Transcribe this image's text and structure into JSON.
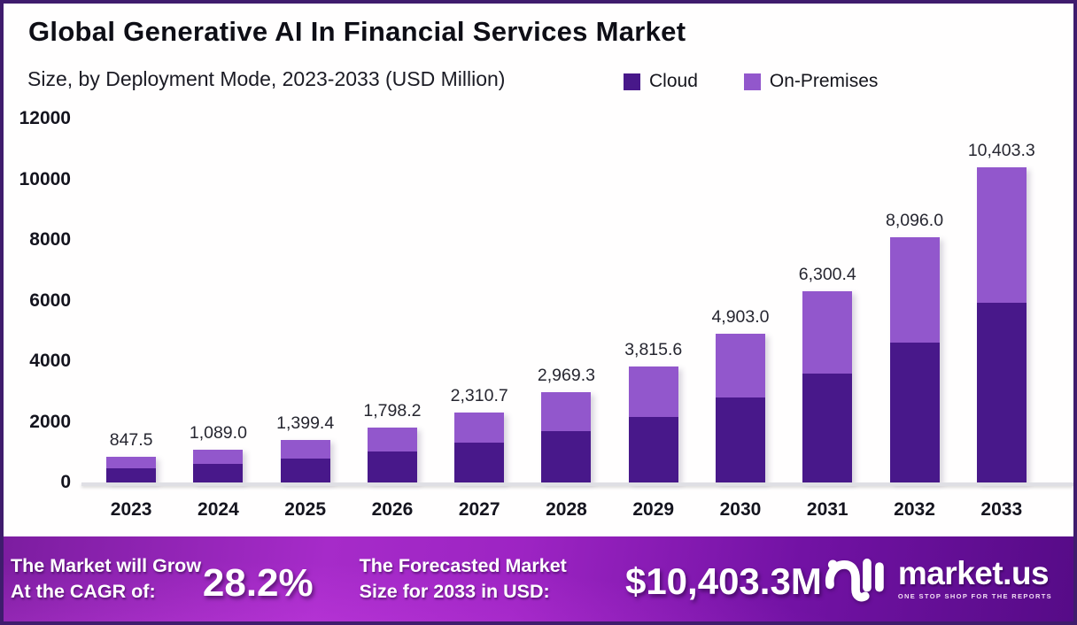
{
  "header": {
    "title": "Global Generative AI In Financial Services Market",
    "subtitle": "Size, by Deployment Mode, 2023-2033 (USD Million)"
  },
  "legend": [
    {
      "label": "Cloud",
      "color": "#48188a"
    },
    {
      "label": "On-Premises",
      "color": "#9257cc"
    }
  ],
  "chart_data": {
    "type": "bar",
    "stacked": true,
    "title": "Global Generative AI In Financial Services Market Size, by Deployment Mode, 2023-2033 (USD Million)",
    "categories": [
      "2023",
      "2024",
      "2025",
      "2026",
      "2027",
      "2028",
      "2029",
      "2030",
      "2031",
      "2032",
      "2033"
    ],
    "series": [
      {
        "name": "Cloud",
        "color": "#48188a",
        "values": [
          483.1,
          620.7,
          797.7,
          1025.0,
          1317.1,
          1692.5,
          2174.9,
          2794.7,
          3591.2,
          4614.7,
          5929.9
        ]
      },
      {
        "name": "On-Premises",
        "color": "#9257cc",
        "values": [
          364.4,
          468.3,
          601.7,
          773.2,
          993.6,
          1276.8,
          1640.7,
          2108.3,
          2709.2,
          3481.3,
          4473.4
        ]
      }
    ],
    "totals": [
      847.5,
      1089.0,
      1399.4,
      1798.2,
      2310.7,
      2969.3,
      3815.6,
      4903.0,
      6300.4,
      8096.0,
      10403.3
    ],
    "total_labels": [
      "847.5",
      "1,089.0",
      "1,399.4",
      "1,798.2",
      "2,310.7",
      "2,969.3",
      "3,815.6",
      "4,903.0",
      "6,300.4",
      "8,096.0",
      "10,403.3"
    ],
    "xlabel": "",
    "ylabel": "",
    "ylim": [
      0,
      12000
    ],
    "yticks": [
      0,
      2000,
      4000,
      6000,
      8000,
      10000,
      12000
    ],
    "grid": false,
    "legend_position": "top"
  },
  "footer": {
    "cagr_label_line1": "The Market will Grow",
    "cagr_label_line2": "At the CAGR of:",
    "cagr_value": "28.2%",
    "forecast_label_line1": "The Forecasted Market",
    "forecast_label_line2": "Size for 2033 in USD:",
    "forecast_value": "$10,403.3M",
    "brand": {
      "name": "market.us",
      "tagline": "ONE STOP SHOP FOR THE REPORTS"
    }
  }
}
